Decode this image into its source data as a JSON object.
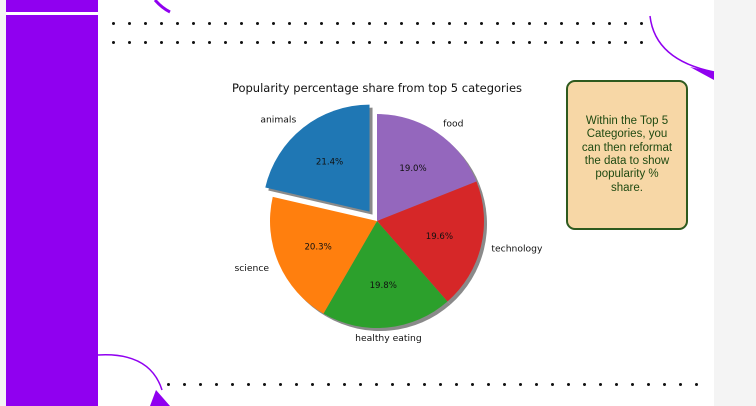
{
  "slide": {
    "callout_text": "Within the Top 5 Categories, you can then reformat the data to show popularity % share."
  },
  "colors": {
    "accent_purple": "#9000f0",
    "callout_fill": "#f7d7a6",
    "callout_border": "#2e5a1e"
  },
  "chart_data": {
    "type": "pie",
    "title": "Popularity percentage share from top 5 categories",
    "categories": [
      "food",
      "technology",
      "healthy eating",
      "science",
      "animals"
    ],
    "values": [
      19.0,
      19.6,
      19.8,
      20.3,
      21.4
    ],
    "percent_labels": [
      "19.0%",
      "19.6%",
      "19.8%",
      "20.3%",
      "21.4%"
    ],
    "colors": [
      "#9467bd",
      "#d62728",
      "#2ca02c",
      "#ff7f0e",
      "#1f77b4"
    ],
    "exploded": [
      "animals"
    ],
    "shadow": true,
    "start_angle": 90,
    "direction": "clockwise",
    "legend": "none"
  }
}
